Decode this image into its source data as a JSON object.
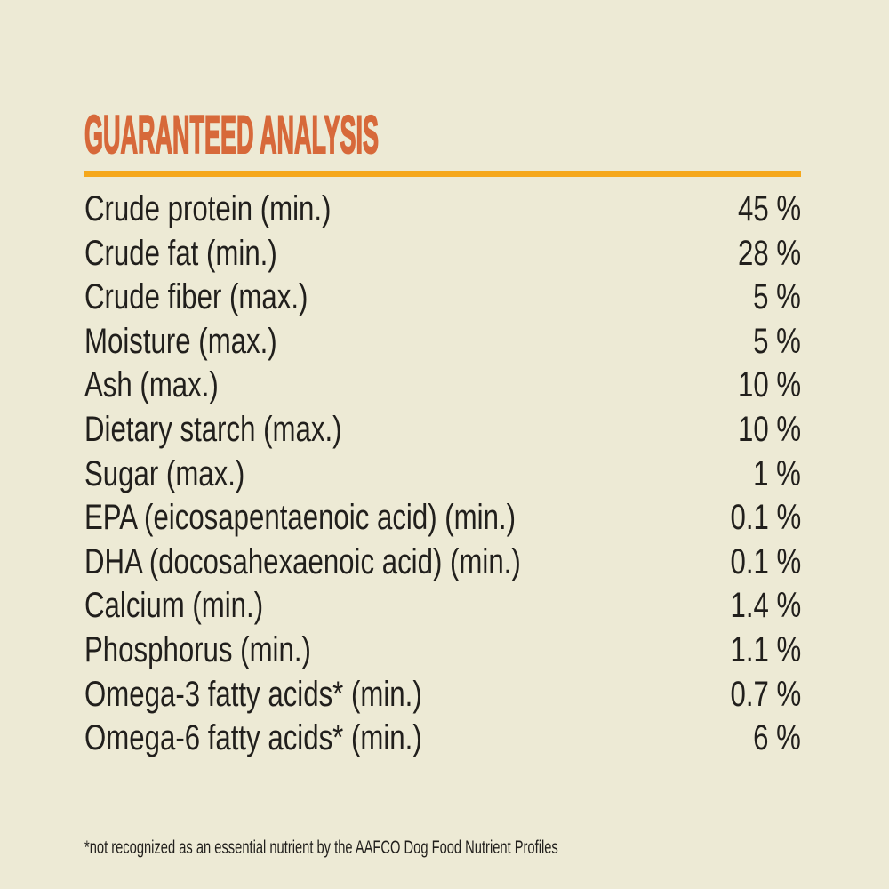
{
  "panel": {
    "title": "GUARANTEED ANALYSIS",
    "footnote": "*not recognized as an essential nutrient by the AAFCO Dog Food Nutrient Profiles",
    "colors": {
      "background": "#EDEAD5",
      "title_orange": "#D7693A",
      "underline_orange": "#F5A81C",
      "body_text": "#211F1C"
    }
  },
  "rows": [
    {
      "label": "Crude protein (min.)",
      "value": "45 %"
    },
    {
      "label": "Crude fat (min.)",
      "value": "28 %"
    },
    {
      "label": "Crude fiber (max.)",
      "value": "5 %"
    },
    {
      "label": "Moisture (max.)",
      "value": "5 %"
    },
    {
      "label": "Ash (max.)",
      "value": "10 %"
    },
    {
      "label": "Dietary starch (max.)",
      "value": "10 %"
    },
    {
      "label": "Sugar (max.)",
      "value": "1 %"
    },
    {
      "label": "EPA (eicosapentaenoic acid) (min.)",
      "value": "0.1 %"
    },
    {
      "label": "DHA (docosahexaenoic acid) (min.)",
      "value": "0.1 %"
    },
    {
      "label": "Calcium (min.)",
      "value": "1.4 %"
    },
    {
      "label": "Phosphorus (min.)",
      "value": "1.1 %"
    },
    {
      "label": "Omega-3 fatty acids* (min.)",
      "value": "0.7 %"
    },
    {
      "label": "Omega-6 fatty acids* (min.)",
      "value": "6 %"
    }
  ]
}
